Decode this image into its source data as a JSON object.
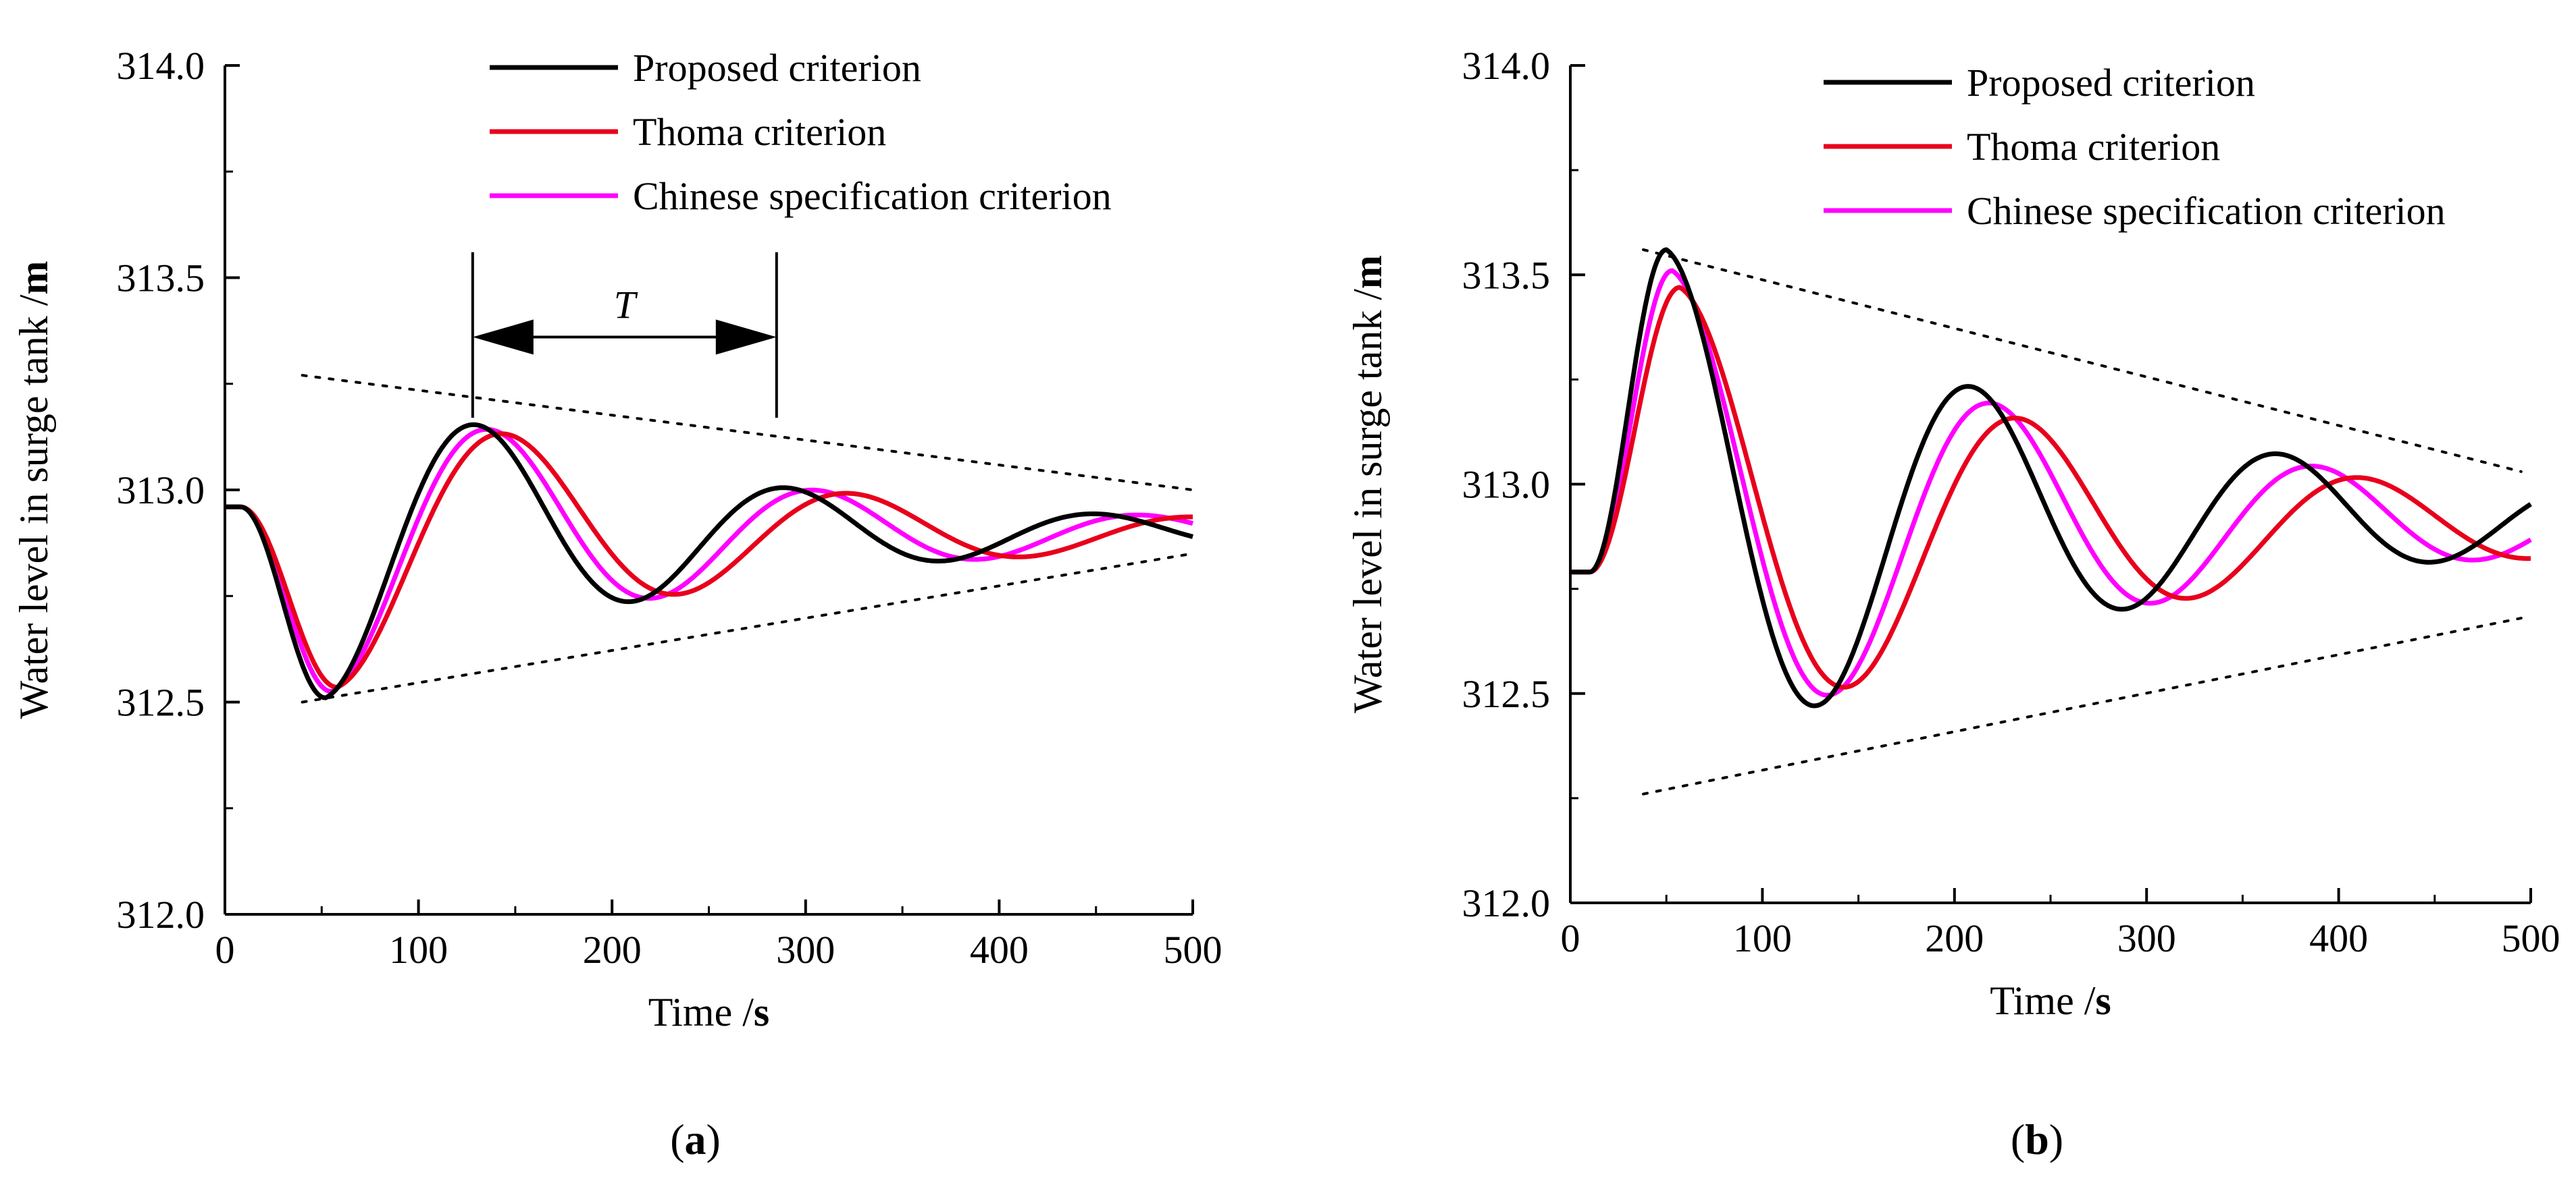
{
  "chart_data": [
    {
      "type": "line",
      "panel_label": "a",
      "xlabel": "Time",
      "xunit": "s",
      "ylabel": "Water level in surge tank",
      "yunit": "m",
      "xlim": [
        0,
        500
      ],
      "ylim": [
        312.0,
        314.0
      ],
      "xticks": [
        0,
        100,
        200,
        300,
        400,
        500
      ],
      "yticks": [
        312.0,
        312.5,
        313.0,
        313.5,
        314.0
      ],
      "ytick_labels": [
        "312.0",
        "312.5",
        "313.0",
        "313.5",
        "314.0"
      ],
      "grid": false,
      "legend_position": "top-center",
      "period_annotation": {
        "text": "T",
        "x_start": 128,
        "x_end": 285,
        "y": 313.36
      },
      "series": [
        {
          "name": "Proposed criterion",
          "color": "#000000",
          "model": {
            "y0": 312.96,
            "mean": 312.9,
            "amplitude": 0.39,
            "decay": 0.0055,
            "period": 160,
            "t_min": 52,
            "t_start": 8
          }
        },
        {
          "name": "Thoma criterion",
          "color": "#e8001c",
          "model": {
            "y0": 312.96,
            "mean": 312.9,
            "amplitude": 0.365,
            "decay": 0.0052,
            "period": 178,
            "t_min": 58,
            "t_start": 8
          }
        },
        {
          "name": "Chinese specification criterion",
          "color": "#ff00ff",
          "model": {
            "y0": 312.96,
            "mean": 312.9,
            "amplitude": 0.375,
            "decay": 0.0053,
            "period": 168,
            "t_min": 55,
            "t_start": 8
          }
        }
      ],
      "envelope": {
        "upper": {
          "x": [
            40,
            500
          ],
          "y": [
            313.27,
            313.0
          ]
        },
        "lower": {
          "x": [
            40,
            500
          ],
          "y": [
            312.5,
            312.85
          ]
        }
      }
    },
    {
      "type": "line",
      "panel_label": "b",
      "xlabel": "Time",
      "xunit": "s",
      "ylabel": "Water level in surge tank",
      "yunit": "m",
      "xlim": [
        0,
        500
      ],
      "ylim": [
        312.0,
        314.0
      ],
      "xticks": [
        0,
        100,
        200,
        300,
        400,
        500
      ],
      "yticks": [
        312.0,
        312.5,
        313.0,
        313.5,
        314.0
      ],
      "ytick_labels": [
        "312.0",
        "312.5",
        "313.0",
        "313.5",
        "314.0"
      ],
      "grid": false,
      "legend_position": "top-right",
      "series": [
        {
          "name": "Proposed criterion",
          "color": "#000000",
          "model": {
            "y0": 312.79,
            "mean": 312.92,
            "amplitude": 0.64,
            "decay": 0.0045,
            "period": 160,
            "t_max": 50,
            "t_start": 10
          }
        },
        {
          "name": "Thoma criterion",
          "color": "#e8001c",
          "model": {
            "y0": 312.79,
            "mean": 312.9,
            "amplitude": 0.57,
            "decay": 0.0045,
            "period": 178,
            "t_max": 57,
            "t_start": 10
          }
        },
        {
          "name": "Chinese specification criterion",
          "color": "#ff00ff",
          "model": {
            "y0": 312.79,
            "mean": 312.91,
            "amplitude": 0.6,
            "decay": 0.0045,
            "period": 168,
            "t_max": 53,
            "t_start": 10
          }
        }
      ],
      "envelope": {
        "upper": {
          "x": [
            38,
            495
          ],
          "y": [
            313.56,
            313.03
          ]
        },
        "lower": {
          "x": [
            38,
            495
          ],
          "y": [
            312.26,
            312.68
          ]
        }
      }
    }
  ]
}
